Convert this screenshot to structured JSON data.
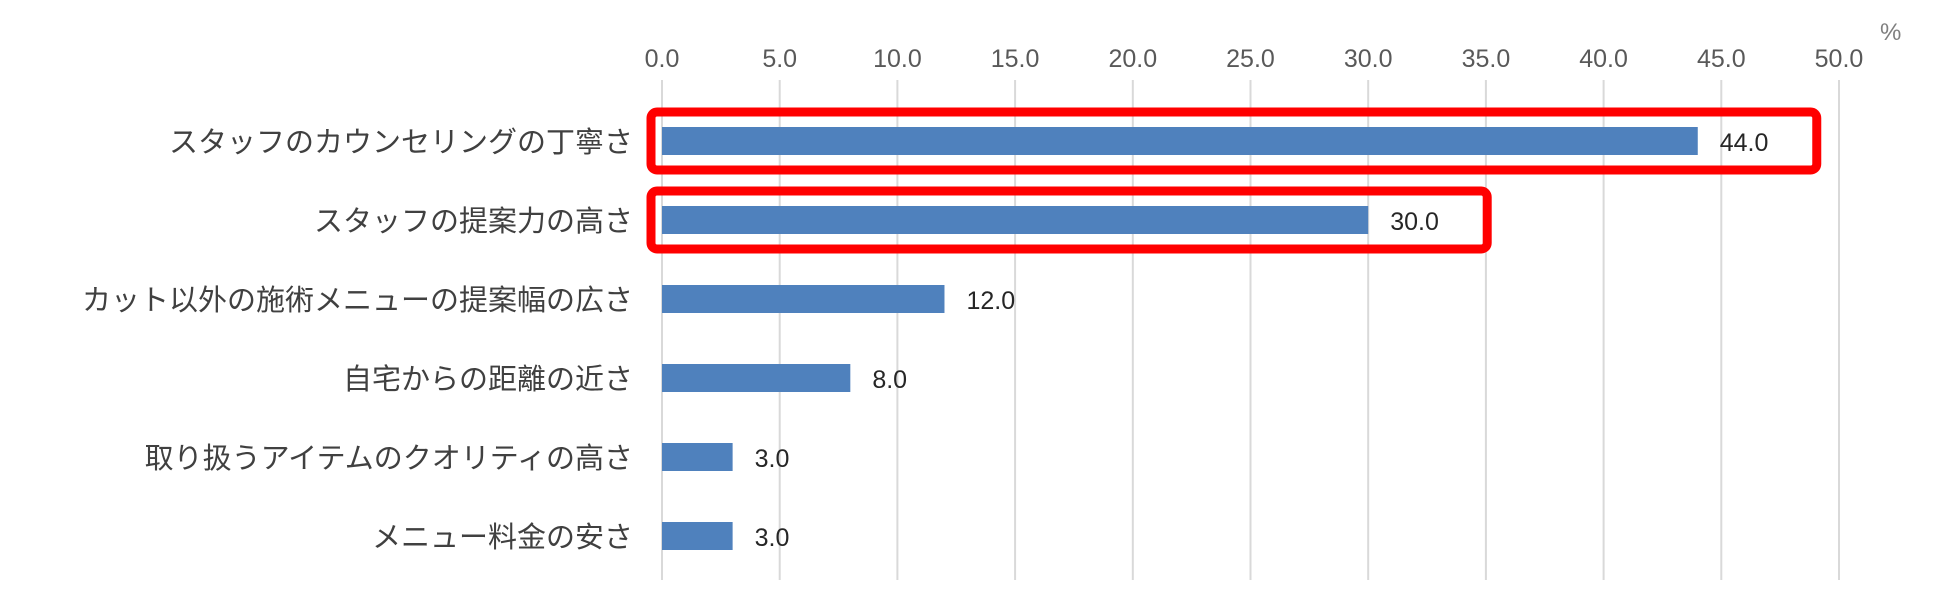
{
  "chart_data": {
    "type": "bar",
    "orientation": "horizontal",
    "unit": "%",
    "xlim": [
      0,
      50
    ],
    "x_ticks": [
      "0.0",
      "5.0",
      "10.0",
      "15.0",
      "20.0",
      "25.0",
      "30.0",
      "35.0",
      "40.0",
      "45.0",
      "50.0"
    ],
    "grid": true,
    "categories": [
      "スタッフのカウンセリングの丁寧さ",
      "スタッフの提案力の高さ",
      "カット以外の施術メニューの提案幅の広さ",
      "自宅からの距離の近さ",
      "取り扱うアイテムのクオリティの高さ",
      "メニュー料金の安さ"
    ],
    "values": [
      44.0,
      30.0,
      12.0,
      8.0,
      3.0,
      3.0
    ],
    "data_labels": [
      "44.0",
      "30.0",
      "12.0",
      "8.0",
      "3.0",
      "3.0"
    ],
    "highlighted": [
      true,
      true,
      false,
      false,
      false,
      false
    ],
    "colors": {
      "bar": "#4f81bd",
      "highlight": "#ff0000",
      "grid": "#d9d9d9"
    }
  }
}
